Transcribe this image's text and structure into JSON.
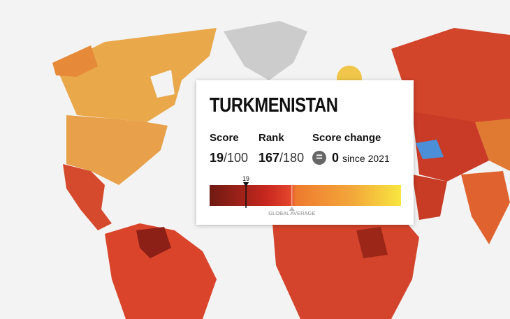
{
  "popup": {
    "country": "TURKMENISTAN",
    "score": {
      "label": "Score",
      "value": 19,
      "max": "/100"
    },
    "rank": {
      "label": "Rank",
      "value": 167,
      "max": "/180"
    },
    "change": {
      "label": "Score change",
      "value": 0,
      "since": "since 2021"
    },
    "scale": {
      "range": [
        0,
        100
      ],
      "marker_label": "19",
      "global_average": 43,
      "global_average_label": "GLOBAL AVERAGE"
    }
  }
}
